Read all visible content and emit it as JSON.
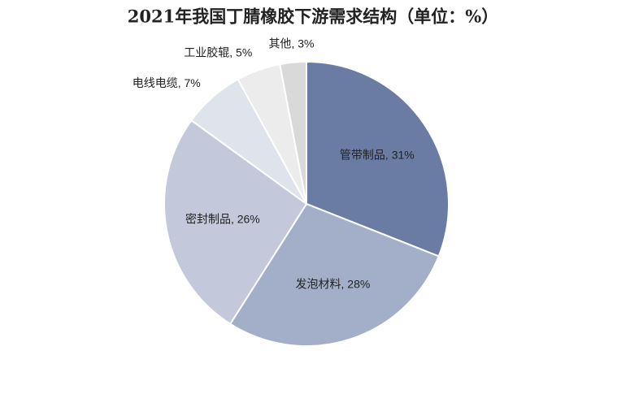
{
  "chart_data": {
    "type": "pie",
    "title": "2021年我国丁腈橡胶下游需求结构（单位：%）",
    "labels": [
      "管带制品, 31%",
      "发泡材料, 28%",
      "密封制品, 26%",
      "电线电缆, 7%",
      "工业胶辊, 5%",
      "其他, 3%"
    ],
    "values": [
      31,
      28,
      26,
      7,
      5,
      3
    ],
    "colors": [
      "#6a7ca3",
      "#a3aec8",
      "#c3c9da",
      "#dfe3ec",
      "#ececec",
      "#d9d9d9"
    ]
  }
}
